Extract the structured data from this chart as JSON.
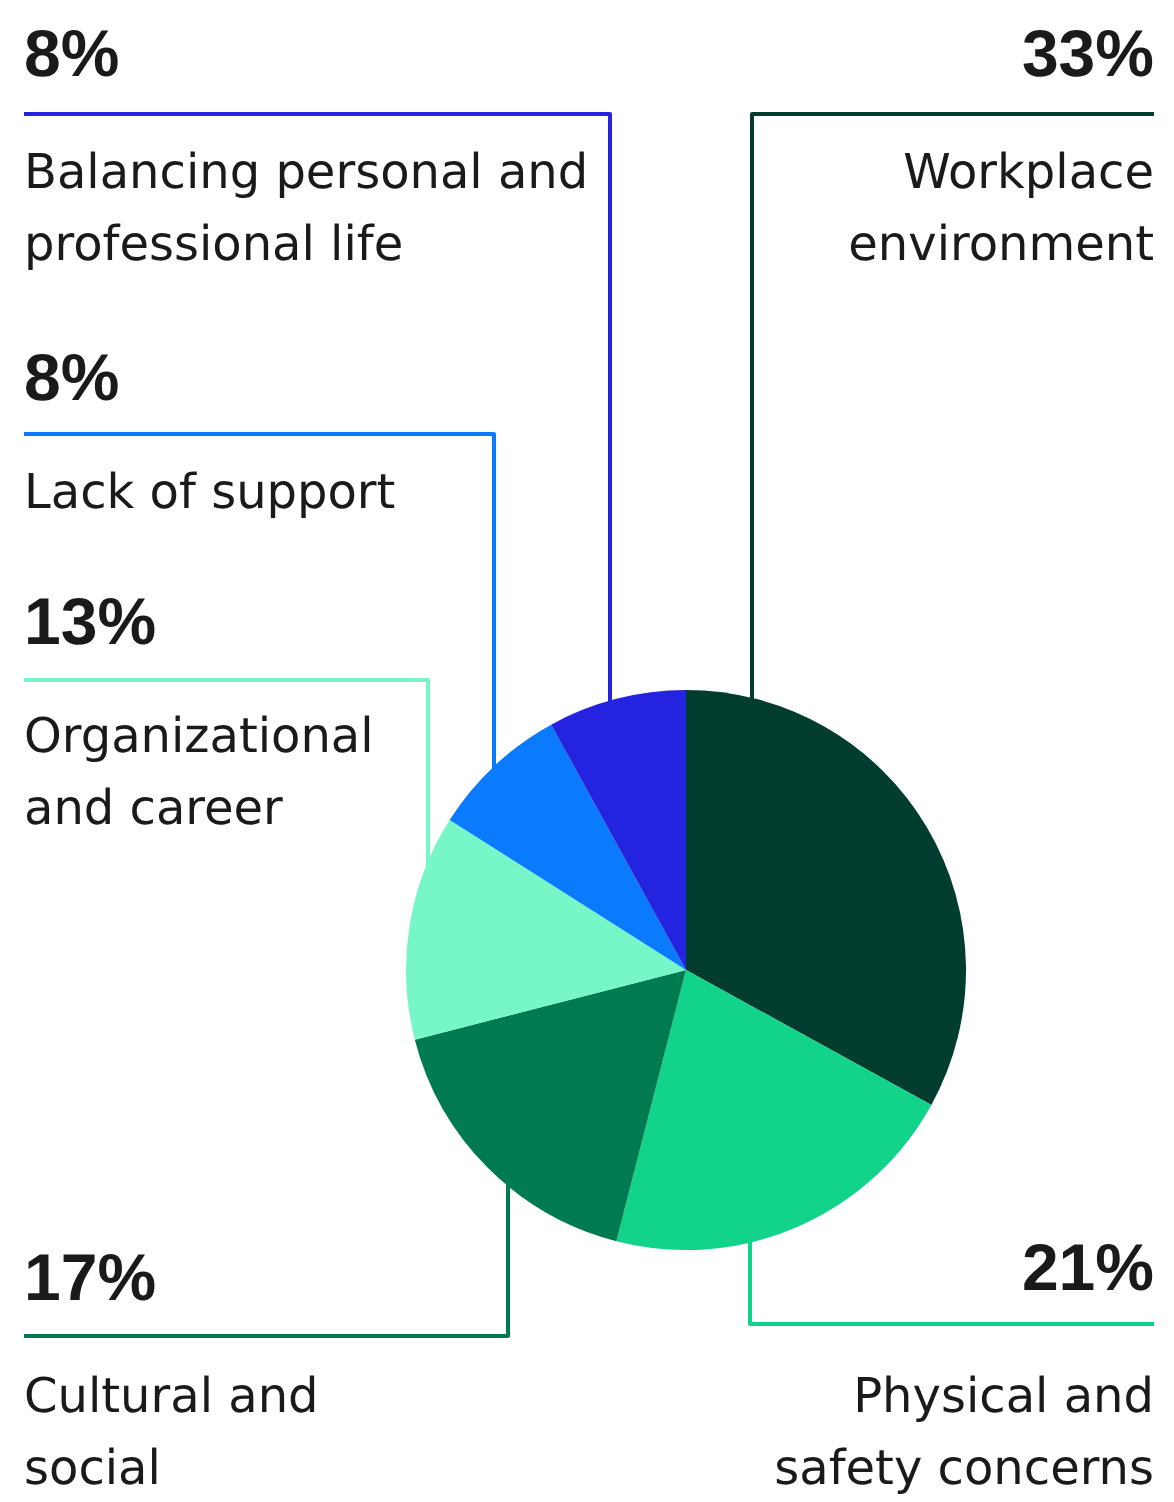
{
  "chart_data": {
    "type": "pie",
    "categories": [
      "Workplace environment",
      "Physical and safety concerns",
      "Cultural and social",
      "Organizational and career",
      "Lack of support",
      "Balancing personal and professional life"
    ],
    "values": [
      33,
      21,
      17,
      13,
      8,
      8
    ],
    "colors": [
      "#003d2e",
      "#11d48a",
      "#007a50",
      "#77f7c8",
      "#0a7bff",
      "#2323e0"
    ],
    "value_labels": [
      "33%",
      "21%",
      "17%",
      "13%",
      "8%",
      "8%"
    ],
    "legend": false
  }
}
